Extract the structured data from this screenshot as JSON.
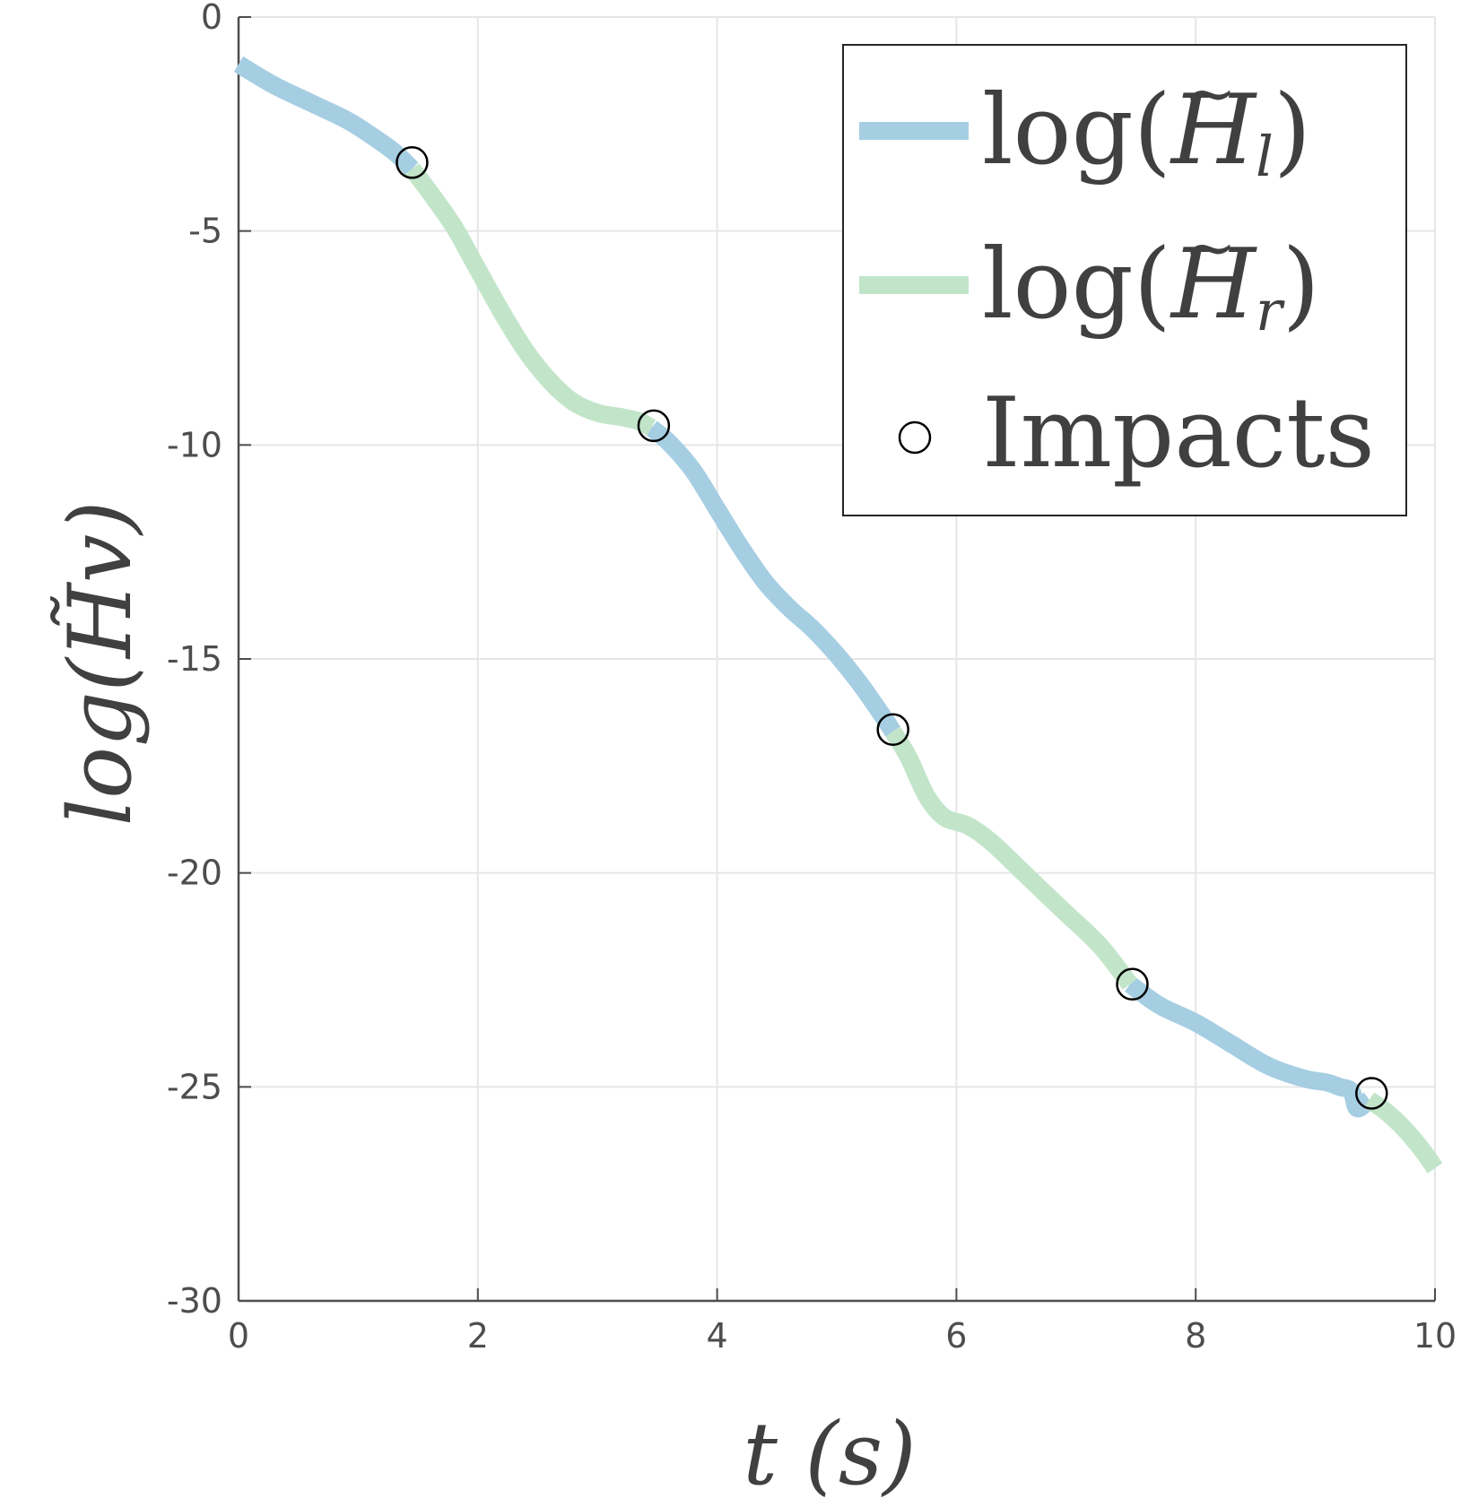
{
  "chart_data": {
    "type": "line",
    "xlabel": "t (s)",
    "ylabel": "log(H̃v)",
    "xlim": [
      0,
      10
    ],
    "ylim": [
      -30,
      0
    ],
    "xticks": [
      0,
      2,
      4,
      6,
      8,
      10
    ],
    "xtick_labels": [
      "0",
      "2",
      "4",
      "6",
      "8",
      "10"
    ],
    "yticks": [
      0,
      -5,
      -10,
      -15,
      -20,
      -25,
      -30
    ],
    "ytick_labels": [
      "0",
      "-5",
      "-10",
      "-15",
      "-20",
      "-25",
      "-30"
    ],
    "grid": true,
    "legend_position": "top-right",
    "legend": [
      {
        "prefix": "log(",
        "symbol": "H",
        "subscript": "l",
        "suffix": ")",
        "color": "#a6cee3"
      },
      {
        "prefix": "log(",
        "symbol": "H",
        "subscript": "r",
        "suffix": ")",
        "color": "#c2e5c9"
      },
      {
        "text": "Impacts",
        "marker": "circle"
      }
    ],
    "series": [
      {
        "key": "left",
        "color": "#a6cee3",
        "segments": [
          [
            [
              0,
              -1.1
            ],
            [
              0.3,
              -1.6
            ],
            [
              0.6,
              -2.0
            ],
            [
              0.9,
              -2.4
            ],
            [
              1.1,
              -2.75
            ],
            [
              1.3,
              -3.15
            ],
            [
              1.45,
              -3.55
            ]
          ],
          [
            [
              3.45,
              -9.6
            ],
            [
              3.6,
              -9.95
            ],
            [
              3.8,
              -10.6
            ],
            [
              4.0,
              -11.5
            ],
            [
              4.2,
              -12.4
            ],
            [
              4.4,
              -13.2
            ],
            [
              4.6,
              -13.8
            ],
            [
              4.8,
              -14.3
            ],
            [
              5.0,
              -14.9
            ],
            [
              5.2,
              -15.6
            ],
            [
              5.4,
              -16.4
            ],
            [
              5.47,
              -16.7
            ]
          ],
          [
            [
              7.45,
              -22.6
            ],
            [
              7.7,
              -23.1
            ],
            [
              8.0,
              -23.5
            ],
            [
              8.3,
              -24.0
            ],
            [
              8.6,
              -24.5
            ],
            [
              8.9,
              -24.8
            ],
            [
              9.1,
              -24.9
            ],
            [
              9.2,
              -25.0
            ],
            [
              9.3,
              -25.1
            ],
            [
              9.35,
              -25.5
            ],
            [
              9.45,
              -25.3
            ]
          ]
        ]
      },
      {
        "key": "right",
        "color": "#c2e5c9",
        "segments": [
          [
            [
              1.45,
              -3.55
            ],
            [
              1.6,
              -4.1
            ],
            [
              1.8,
              -4.9
            ],
            [
              2.0,
              -5.9
            ],
            [
              2.2,
              -6.9
            ],
            [
              2.4,
              -7.8
            ],
            [
              2.6,
              -8.5
            ],
            [
              2.8,
              -9.0
            ],
            [
              3.0,
              -9.25
            ],
            [
              3.2,
              -9.35
            ],
            [
              3.35,
              -9.45
            ],
            [
              3.45,
              -9.6
            ]
          ],
          [
            [
              5.47,
              -16.7
            ],
            [
              5.6,
              -17.3
            ],
            [
              5.75,
              -18.2
            ],
            [
              5.9,
              -18.7
            ],
            [
              6.1,
              -18.9
            ],
            [
              6.3,
              -19.3
            ],
            [
              6.6,
              -20.1
            ],
            [
              6.9,
              -20.9
            ],
            [
              7.2,
              -21.7
            ],
            [
              7.45,
              -22.6
            ]
          ],
          [
            [
              9.45,
              -25.3
            ],
            [
              9.6,
              -25.6
            ],
            [
              9.75,
              -26.0
            ],
            [
              9.9,
              -26.5
            ],
            [
              10.0,
              -26.9
            ]
          ]
        ]
      }
    ],
    "impacts": {
      "label": "Impacts",
      "points": [
        [
          1.45,
          -3.4
        ],
        [
          3.47,
          -9.55
        ],
        [
          5.47,
          -16.65
        ],
        [
          7.47,
          -22.6
        ],
        [
          9.47,
          -25.15
        ]
      ]
    }
  }
}
